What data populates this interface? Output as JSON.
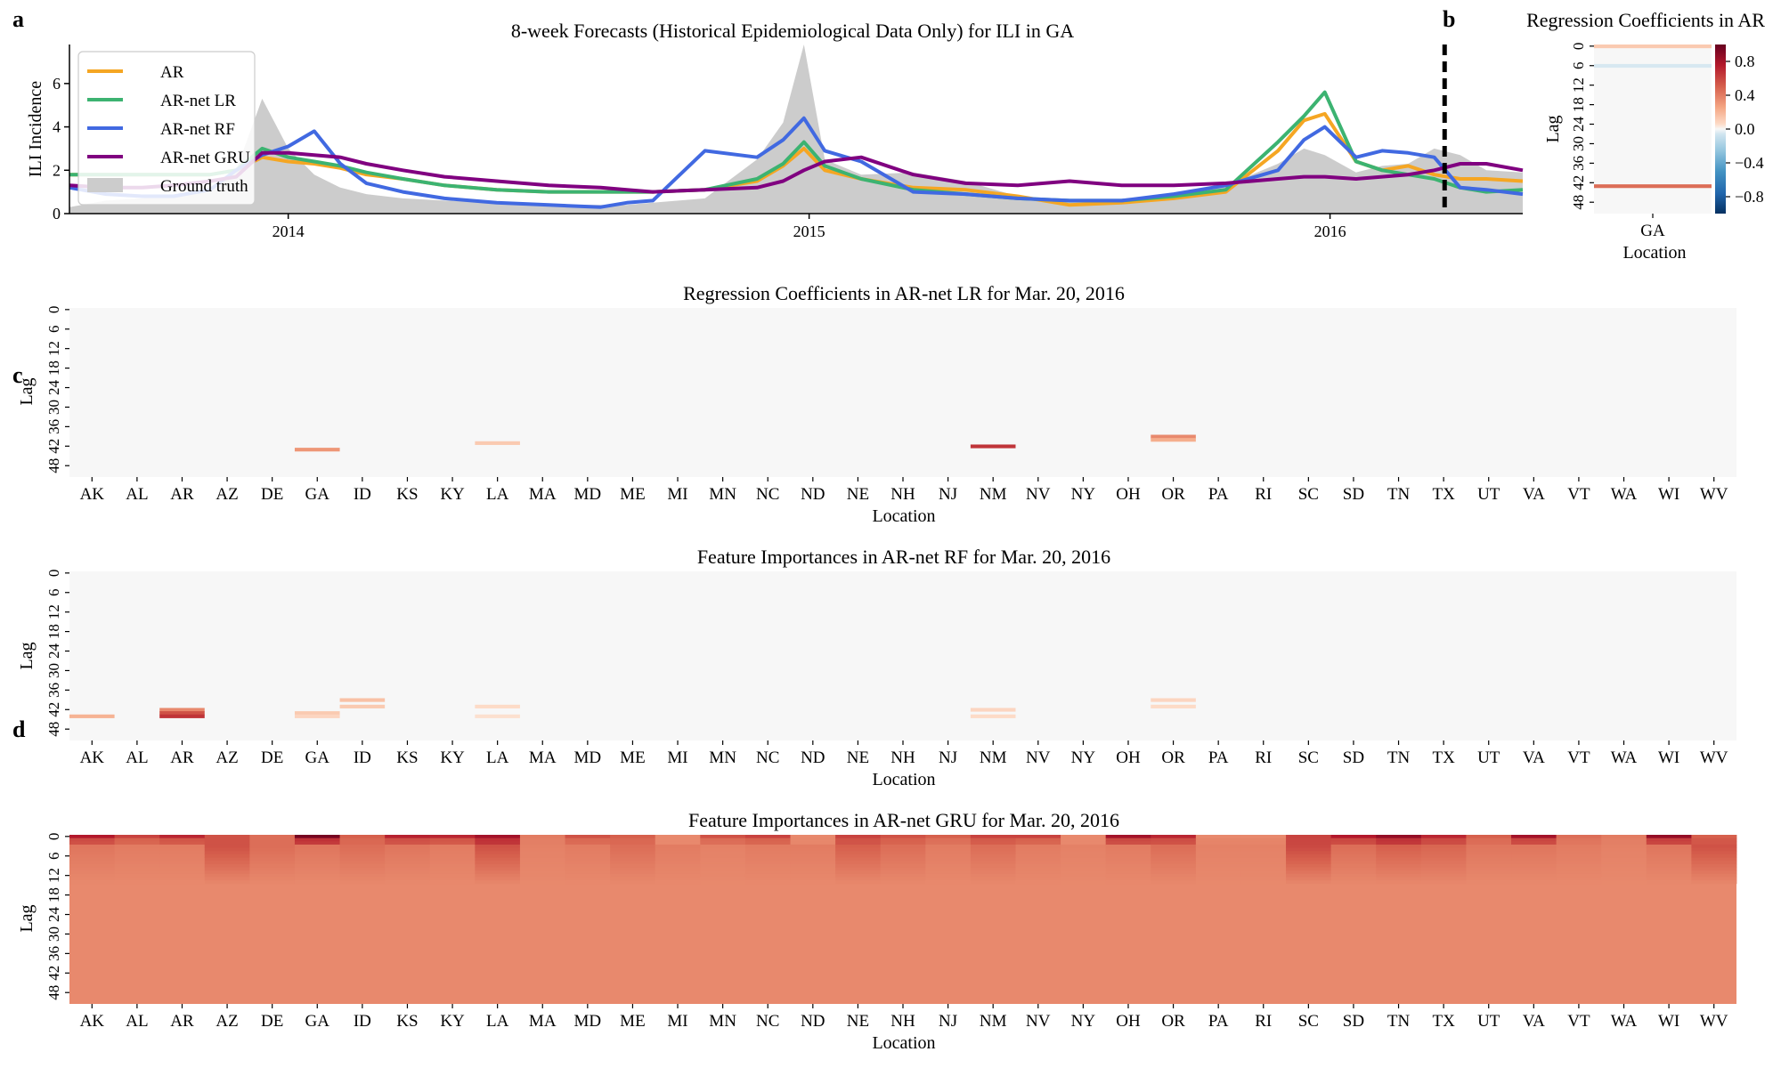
{
  "panel_labels": {
    "a": "a",
    "b": "b",
    "c": "c",
    "d": "d"
  },
  "colors": {
    "AR": "#f5a623",
    "LR": "#3cb371",
    "RF": "#4169e1",
    "GRU": "#800080",
    "truth": "#cccccc"
  },
  "chart_data": [
    {
      "type": "line",
      "title": "8-week Forecasts (Historical Epidemiological Data Only) for ILI in GA",
      "ylabel": "ILI Incidence",
      "xlabel": "",
      "xlim": [
        2013.58,
        2016.37
      ],
      "ylim": [
        0,
        7.8
      ],
      "yticks": [
        "0",
        "2",
        "4",
        "6"
      ],
      "xticks": [
        "2014",
        "2015",
        "2016"
      ],
      "divider_x": 2016.22,
      "legend": [
        "AR",
        "AR-net LR",
        "AR-net RF",
        "AR-net GRU",
        "Ground truth"
      ],
      "x": [
        2013.58,
        2013.65,
        2013.72,
        2013.78,
        2013.85,
        2013.9,
        2013.95,
        2014.0,
        2014.05,
        2014.1,
        2014.15,
        2014.22,
        2014.3,
        2014.4,
        2014.5,
        2014.6,
        2014.65,
        2014.7,
        2014.8,
        2014.9,
        2014.95,
        2014.99,
        2015.03,
        2015.1,
        2015.2,
        2015.3,
        2015.4,
        2015.5,
        2015.6,
        2015.7,
        2015.8,
        2015.9,
        2015.95,
        2015.99,
        2016.05,
        2016.1,
        2016.15,
        2016.2,
        2016.25,
        2016.3,
        2016.37
      ],
      "series": [
        {
          "name": "Ground truth",
          "values": [
            0.3,
            0.6,
            0.7,
            0.8,
            1.2,
            2.0,
            5.3,
            3.0,
            1.8,
            1.2,
            0.9,
            0.7,
            0.6,
            0.5,
            0.4,
            0.4,
            0.4,
            0.5,
            0.7,
            2.5,
            4.2,
            7.8,
            2.5,
            1.8,
            1.9,
            1.5,
            0.8,
            0.6,
            0.6,
            0.9,
            1.3,
            2.3,
            3.0,
            2.7,
            1.9,
            2.2,
            2.3,
            3.0,
            2.7,
            2.0,
            1.9
          ]
        },
        {
          "name": "AR",
          "values": [
            1.8,
            1.8,
            1.8,
            1.8,
            1.8,
            2.0,
            2.6,
            2.4,
            2.3,
            2.1,
            1.8,
            1.6,
            1.3,
            1.1,
            1.0,
            1.0,
            1.0,
            1.0,
            1.1,
            1.5,
            2.2,
            3.0,
            2.0,
            1.6,
            1.2,
            1.1,
            0.8,
            0.4,
            0.5,
            0.7,
            1.0,
            2.9,
            4.3,
            4.6,
            2.4,
            2.0,
            2.2,
            1.8,
            1.6,
            1.6,
            1.5
          ]
        },
        {
          "name": "AR-net LR",
          "values": [
            1.8,
            1.8,
            1.8,
            1.8,
            1.8,
            2.0,
            3.0,
            2.6,
            2.4,
            2.2,
            1.9,
            1.6,
            1.3,
            1.1,
            1.0,
            1.0,
            1.0,
            1.0,
            1.1,
            1.6,
            2.3,
            3.3,
            2.2,
            1.6,
            1.1,
            0.9,
            0.7,
            0.6,
            0.6,
            0.8,
            1.1,
            3.3,
            4.5,
            5.6,
            2.4,
            2.0,
            1.8,
            1.6,
            1.2,
            1.0,
            1.1
          ]
        },
        {
          "name": "AR-net RF",
          "values": [
            1.2,
            0.9,
            0.8,
            0.8,
            1.1,
            2.0,
            2.7,
            3.1,
            3.8,
            2.3,
            1.4,
            1.0,
            0.7,
            0.5,
            0.4,
            0.3,
            0.5,
            0.6,
            2.9,
            2.6,
            3.4,
            4.4,
            2.9,
            2.4,
            1.0,
            0.9,
            0.7,
            0.6,
            0.6,
            0.9,
            1.3,
            2.0,
            3.4,
            4.0,
            2.6,
            2.9,
            2.8,
            2.6,
            1.2,
            1.1,
            0.9
          ]
        },
        {
          "name": "AR-net GRU",
          "values": [
            1.3,
            1.2,
            1.2,
            1.3,
            1.5,
            1.7,
            2.8,
            2.8,
            2.7,
            2.6,
            2.3,
            2.0,
            1.7,
            1.5,
            1.3,
            1.2,
            1.1,
            1.0,
            1.1,
            1.2,
            1.5,
            2.0,
            2.4,
            2.6,
            1.8,
            1.4,
            1.3,
            1.5,
            1.3,
            1.3,
            1.4,
            1.6,
            1.7,
            1.7,
            1.6,
            1.7,
            1.8,
            2.0,
            2.3,
            2.3,
            2.0
          ]
        }
      ]
    },
    {
      "type": "heatmap",
      "title": "Regression Coefficients in AR",
      "ylabel": "Lag",
      "xlabel": "Location",
      "categories": [
        "GA"
      ],
      "yticks": [
        "0",
        "6",
        "12",
        "18",
        "24",
        "30",
        "36",
        "42",
        "48"
      ],
      "colorbar_ticks": [
        "0.8",
        "0.4",
        "0.0",
        "−0.4",
        "−0.8"
      ],
      "vmin": -1,
      "vmax": 1,
      "rows": 52,
      "cells": [
        {
          "col": 0,
          "lag": 0,
          "value": 0.12
        },
        {
          "col": 0,
          "lag": 6,
          "value": -0.05
        },
        {
          "col": 0,
          "lag": 43,
          "value": 0.45
        }
      ]
    },
    {
      "type": "heatmap",
      "title": "Regression Coefficients in AR-net LR for Mar. 20, 2016",
      "ylabel": "Lag",
      "xlabel": "Location",
      "categories": [
        "AK",
        "AL",
        "AR",
        "AZ",
        "DE",
        "GA",
        "ID",
        "KS",
        "KY",
        "LA",
        "MA",
        "MD",
        "ME",
        "MI",
        "MN",
        "NC",
        "ND",
        "NE",
        "NH",
        "NJ",
        "NM",
        "NV",
        "NY",
        "OH",
        "OR",
        "PA",
        "RI",
        "SC",
        "SD",
        "TN",
        "TX",
        "UT",
        "VA",
        "VT",
        "WA",
        "WI",
        "WV"
      ],
      "yticks": [
        "0",
        "6",
        "12",
        "18",
        "24",
        "30",
        "36",
        "42",
        "48"
      ],
      "rows": 52,
      "cells": [
        {
          "col": 5,
          "lag": 43,
          "value": 0.3
        },
        {
          "col": 9,
          "lag": 41,
          "value": 0.12
        },
        {
          "col": 20,
          "lag": 42,
          "value": 0.65
        },
        {
          "col": 24,
          "lag": 39,
          "value": 0.35
        },
        {
          "col": 24,
          "lag": 40,
          "value": 0.22
        }
      ]
    },
    {
      "type": "heatmap",
      "title": "Feature Importances in AR-net RF for Mar. 20, 2016",
      "ylabel": "Lag",
      "xlabel": "Location",
      "categories": [
        "AK",
        "AL",
        "AR",
        "AZ",
        "DE",
        "GA",
        "ID",
        "KS",
        "KY",
        "LA",
        "MA",
        "MD",
        "ME",
        "MI",
        "MN",
        "NC",
        "ND",
        "NE",
        "NH",
        "NJ",
        "NM",
        "NV",
        "NY",
        "OH",
        "OR",
        "PA",
        "RI",
        "SC",
        "SD",
        "TN",
        "TX",
        "UT",
        "VA",
        "VT",
        "WA",
        "WI",
        "WV"
      ],
      "yticks": [
        "0",
        "6",
        "12",
        "18",
        "24",
        "30",
        "36",
        "42",
        "48"
      ],
      "rows": 52,
      "cells": [
        {
          "col": 0,
          "lag": 44,
          "value": 0.2
        },
        {
          "col": 2,
          "lag": 42,
          "value": 0.35
        },
        {
          "col": 2,
          "lag": 43,
          "value": 0.55
        },
        {
          "col": 2,
          "lag": 44,
          "value": 0.65
        },
        {
          "col": 5,
          "lag": 43,
          "value": 0.12
        },
        {
          "col": 5,
          "lag": 44,
          "value": 0.08
        },
        {
          "col": 6,
          "lag": 39,
          "value": 0.15
        },
        {
          "col": 6,
          "lag": 41,
          "value": 0.12
        },
        {
          "col": 9,
          "lag": 41,
          "value": 0.06
        },
        {
          "col": 9,
          "lag": 44,
          "value": 0.05
        },
        {
          "col": 20,
          "lag": 42,
          "value": 0.08
        },
        {
          "col": 20,
          "lag": 44,
          "value": 0.06
        },
        {
          "col": 24,
          "lag": 39,
          "value": 0.08
        },
        {
          "col": 24,
          "lag": 41,
          "value": 0.06
        }
      ]
    },
    {
      "type": "heatmap",
      "title": "Feature Importances in AR-net GRU for Mar. 20, 2016",
      "ylabel": "Lag",
      "xlabel": "Location",
      "categories": [
        "AK",
        "AL",
        "AR",
        "AZ",
        "DE",
        "GA",
        "ID",
        "KS",
        "KY",
        "LA",
        "MA",
        "MD",
        "ME",
        "MI",
        "MN",
        "NC",
        "ND",
        "NE",
        "NH",
        "NJ",
        "NM",
        "NV",
        "NY",
        "OH",
        "OR",
        "PA",
        "RI",
        "SC",
        "SD",
        "TN",
        "TX",
        "UT",
        "VA",
        "VT",
        "WA",
        "WI",
        "WV"
      ],
      "yticks": [
        "0",
        "6",
        "12",
        "18",
        "24",
        "30",
        "36",
        "42",
        "48"
      ],
      "rows": 52,
      "base_value": 0.35,
      "top_values": [
        0.75,
        0.6,
        0.7,
        0.55,
        0.45,
        0.95,
        0.5,
        0.72,
        0.7,
        0.8,
        0.4,
        0.55,
        0.5,
        0.25,
        0.55,
        0.6,
        0.3,
        0.6,
        0.55,
        0.5,
        0.6,
        0.6,
        0.25,
        0.8,
        0.7,
        0.35,
        0.35,
        0.6,
        0.75,
        0.85,
        0.7,
        0.5,
        0.8,
        0.45,
        0.4,
        0.85,
        0.5
      ],
      "band_values": [
        0.42,
        0.4,
        0.4,
        0.55,
        0.45,
        0.42,
        0.45,
        0.42,
        0.4,
        0.55,
        0.38,
        0.4,
        0.45,
        0.4,
        0.38,
        0.4,
        0.4,
        0.5,
        0.45,
        0.4,
        0.45,
        0.4,
        0.38,
        0.4,
        0.45,
        0.38,
        0.38,
        0.58,
        0.45,
        0.5,
        0.48,
        0.42,
        0.42,
        0.4,
        0.38,
        0.42,
        0.55
      ]
    }
  ]
}
